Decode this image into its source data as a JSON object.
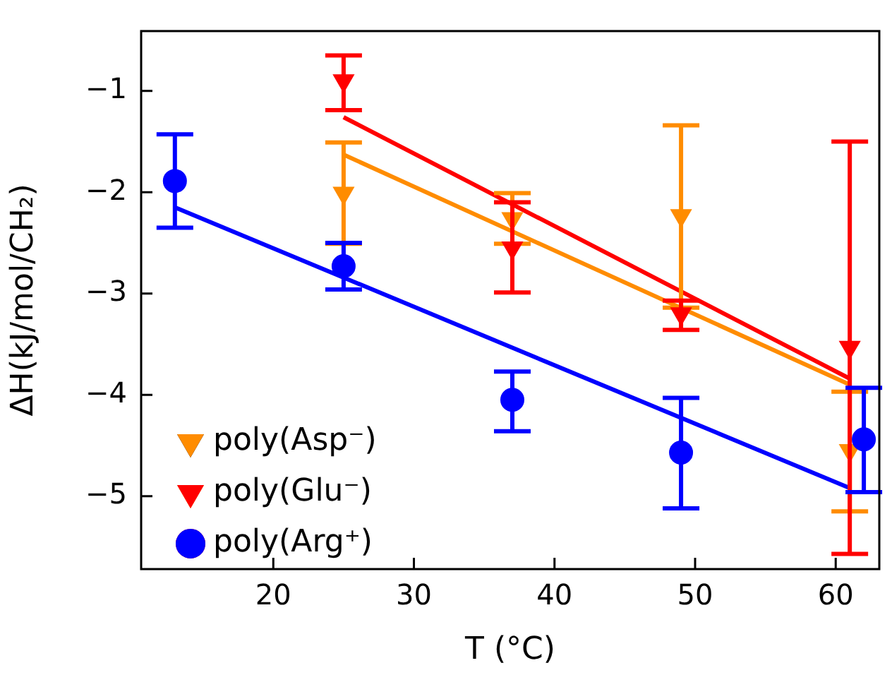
{
  "chart_data": {
    "type": "scatter",
    "xlabel": "T (°C)",
    "ylabel": "ΔH(kJ/mol/CH₂)",
    "xlim": [
      10.6,
      63.1
    ],
    "ylim": [
      -5.72,
      -0.41
    ],
    "xticks": [
      20,
      30,
      40,
      50,
      60
    ],
    "yticks": [
      -1,
      -2,
      -3,
      -4,
      -5
    ],
    "grid": false,
    "legend": "bottom left",
    "series": [
      {
        "name": "poly(Asp⁻)",
        "color": "#ff8c00",
        "marker": "triangle",
        "x": [
          25,
          37,
          49,
          61
        ],
        "values": [
          -2.01,
          -2.26,
          -2.23,
          -4.55
        ],
        "errors": [
          [
            -2.51,
            -1.51
          ],
          0.25,
          [
            -3.14,
            -1.34
          ],
          [
            -5.15,
            -3.97
          ]
        ]
      },
      {
        "name": "poly(Glu⁻)",
        "color": "#ff0000",
        "marker": "triangle",
        "x": [
          25,
          37,
          49,
          61
        ],
        "values": [
          -0.9,
          -2.55,
          -3.2,
          -3.53
        ],
        "errors": [
          [
            -1.19,
            -0.65
          ],
          [
            -2.99,
            -2.1
          ],
          [
            -3.36,
            -3.07
          ],
          [
            -5.57,
            -1.5
          ]
        ]
      },
      {
        "name": "poly(Arg⁺)",
        "color": "#0000ff",
        "marker": "circle",
        "x": [
          13,
          25,
          37,
          49,
          62
        ],
        "values": [
          -1.89,
          -2.73,
          -4.05,
          -4.57,
          -4.44
        ],
        "errors": [
          [
            -2.35,
            -1.43
          ],
          [
            -2.96,
            -2.5
          ],
          [
            -4.36,
            -3.77
          ],
          [
            -5.12,
            -4.03
          ],
          [
            -4.96,
            -3.93
          ]
        ]
      },
      {
        "type": "line",
        "color": "#ff8c00",
        "x": [
          25,
          61
        ],
        "values": [
          -1.63,
          -3.9
        ]
      },
      {
        "type": "line",
        "color": "#ff0000",
        "x": [
          25,
          61
        ],
        "values": [
          -1.26,
          -3.84
        ]
      },
      {
        "type": "line",
        "color": "#0000ff",
        "x": [
          13,
          61
        ],
        "values": [
          -2.15,
          -4.92
        ]
      }
    ]
  }
}
